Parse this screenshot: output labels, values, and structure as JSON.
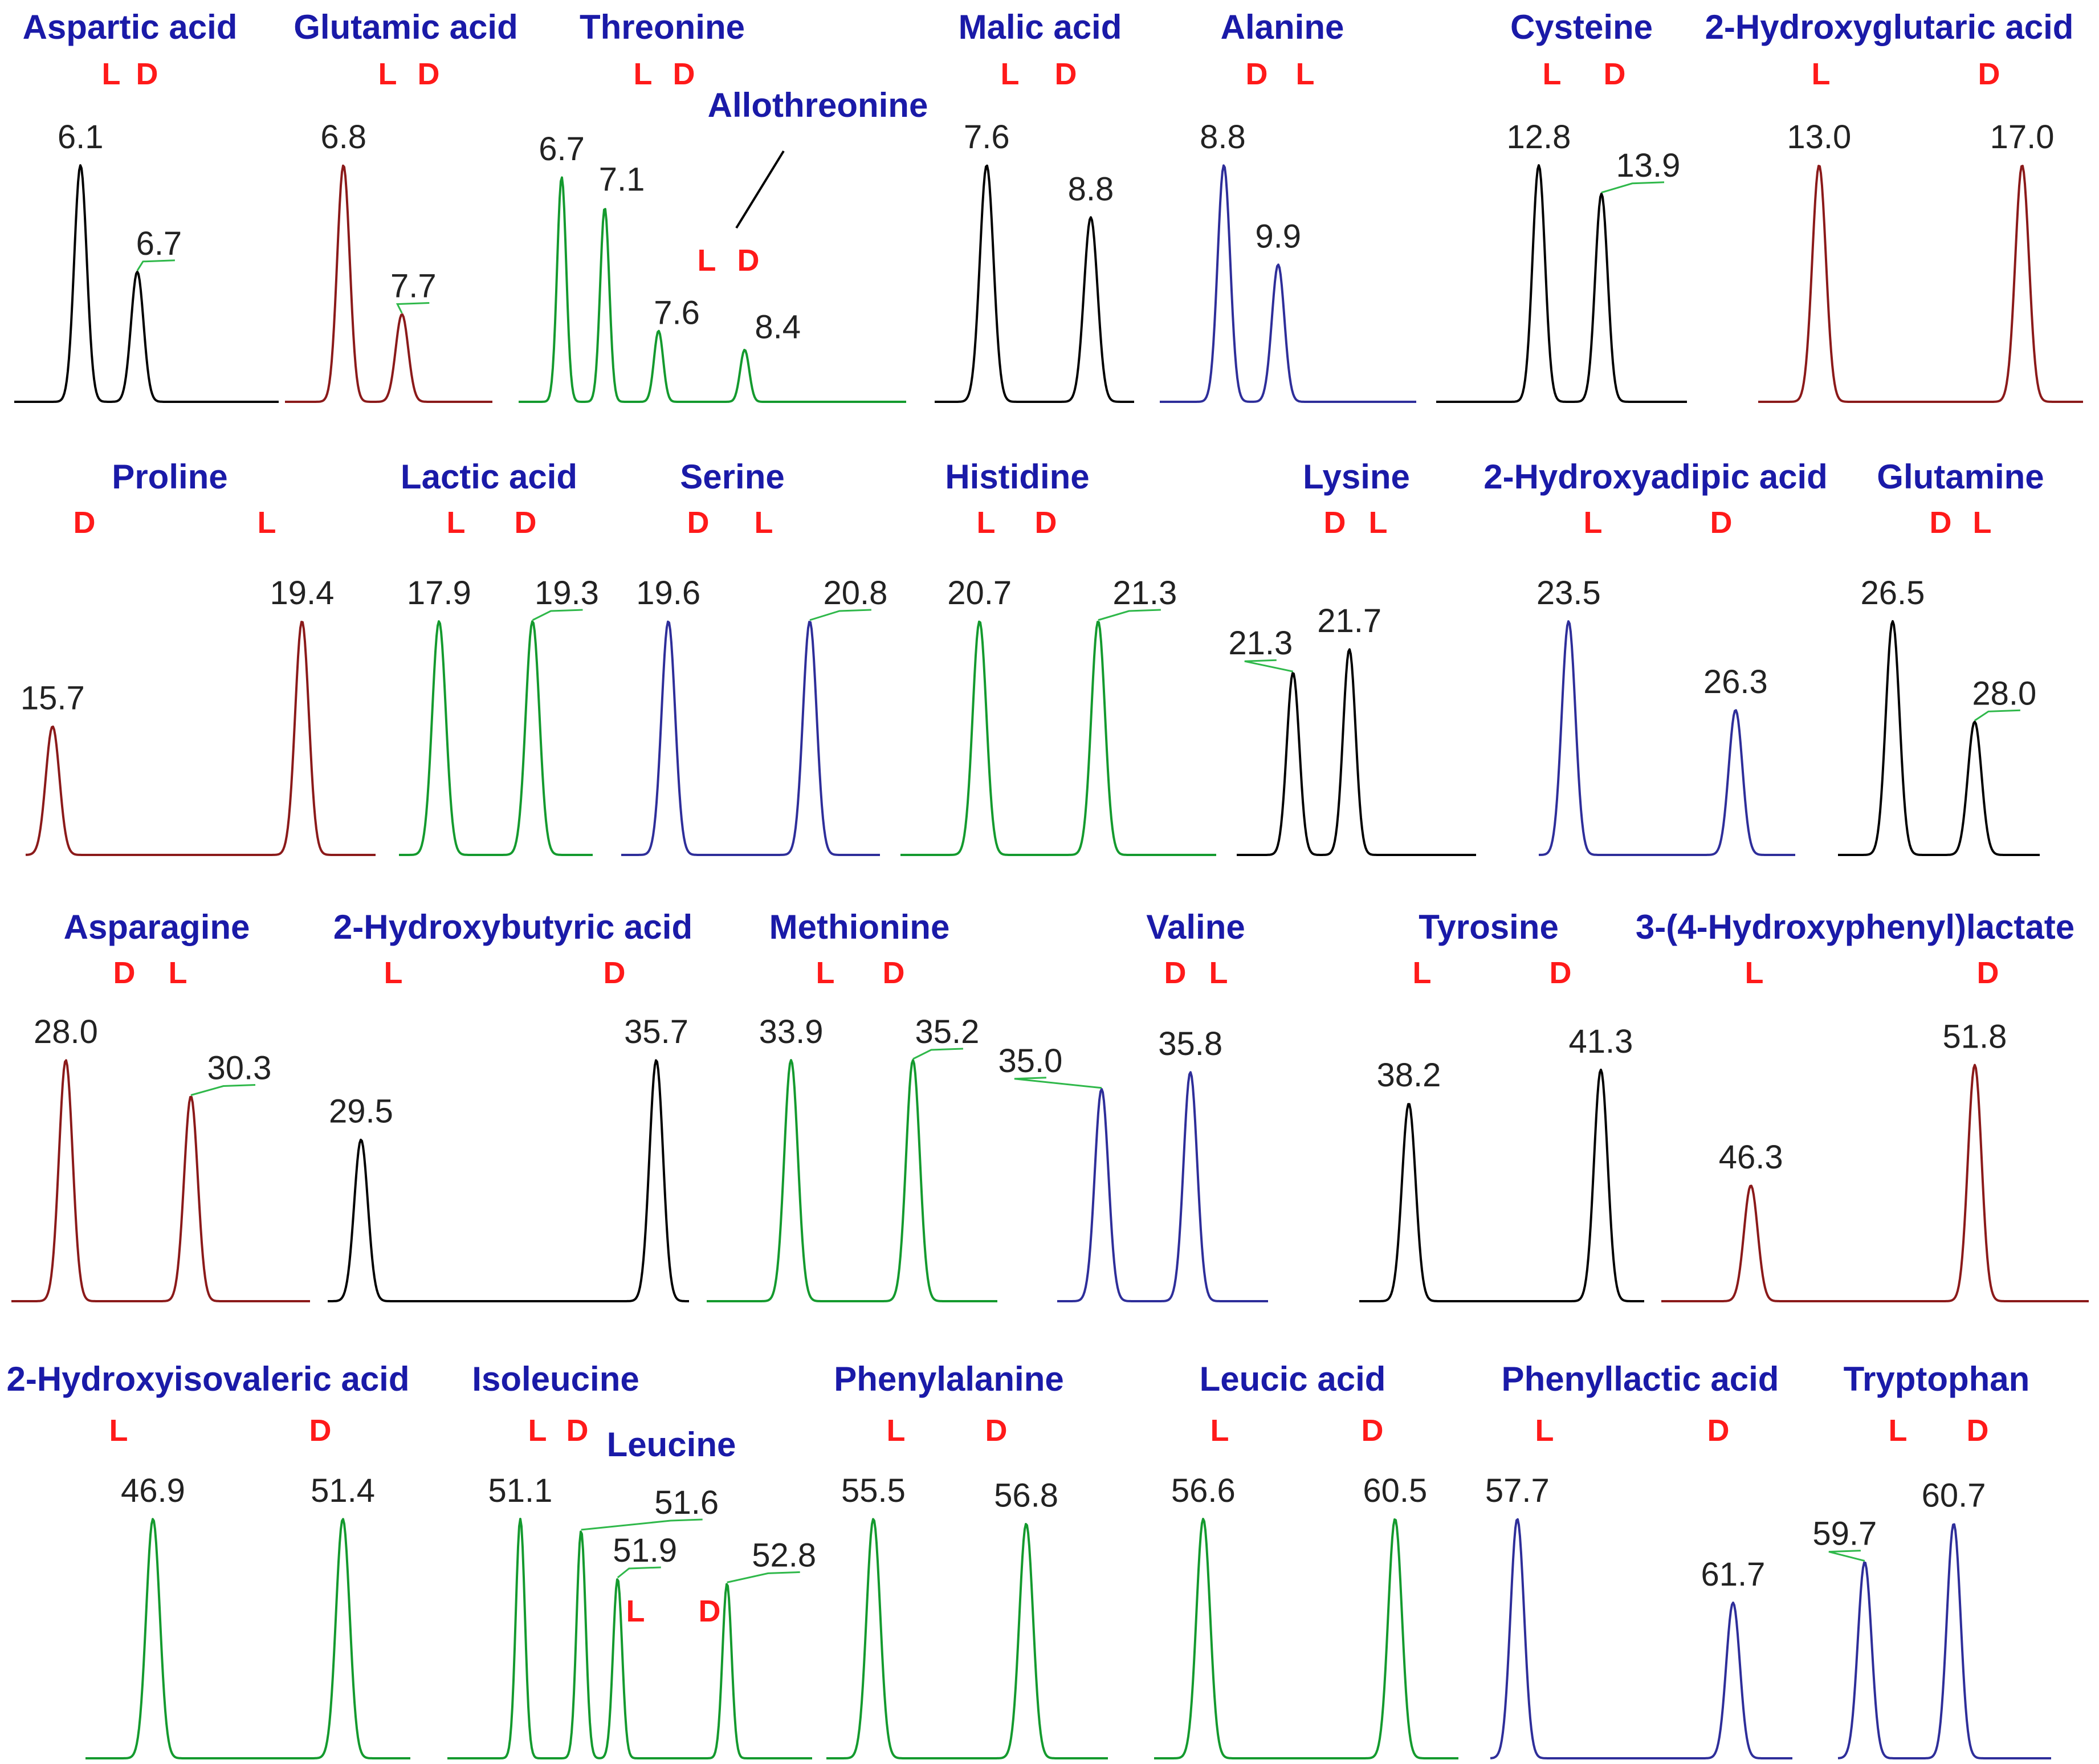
{
  "palette": {
    "black": "#000000",
    "red": "#8b1a1a",
    "green": "#149a2e",
    "blue": "#2e2e9a",
    "title": "#1a1aa8",
    "enant": "#ff1a1a"
  },
  "chart_data": [
    {
      "type": "line",
      "title": "Aspartic acid",
      "color": "black",
      "xlim": [
        5.4,
        8.2
      ],
      "peaks": [
        {
          "enantiomer": "L",
          "rt": 6.1,
          "height": 1.0
        },
        {
          "enantiomer": "D",
          "rt": 6.7,
          "height": 0.55
        }
      ]
    },
    {
      "type": "line",
      "title": "Glutamic acid",
      "color": "red",
      "xlim": [
        5.9,
        9.1
      ],
      "peaks": [
        {
          "enantiomer": "L",
          "rt": 6.8,
          "height": 1.0
        },
        {
          "enantiomer": "D",
          "rt": 7.7,
          "height": 0.37
        }
      ]
    },
    {
      "type": "line",
      "title": "Threonine",
      "color": "green",
      "xlim": [
        6.3,
        9.9
      ],
      "peaks": [
        {
          "enantiomer": "L",
          "rt": 6.7,
          "height": 0.95
        },
        {
          "enantiomer": "D",
          "rt": 7.1,
          "height": 0.82
        }
      ]
    },
    {
      "type": "line",
      "title": "Allothreonine",
      "color": "green",
      "peaks": [
        {
          "enantiomer": "L",
          "rt": 7.6,
          "height": 0.3
        },
        {
          "enantiomer": "D",
          "rt": 8.4,
          "height": 0.22
        }
      ]
    },
    {
      "type": "line",
      "title": "Malic acid",
      "color": "black",
      "xlim": [
        7.0,
        9.3
      ],
      "peaks": [
        {
          "enantiomer": "L",
          "rt": 7.6,
          "height": 1.0
        },
        {
          "enantiomer": "D",
          "rt": 8.8,
          "height": 0.78
        }
      ]
    },
    {
      "type": "line",
      "title": "Alanine",
      "color": "blue",
      "xlim": [
        7.5,
        12.7
      ],
      "peaks": [
        {
          "enantiomer": "D",
          "rt": 8.8,
          "height": 1.0
        },
        {
          "enantiomer": "L",
          "rt": 9.9,
          "height": 0.58
        }
      ]
    },
    {
      "type": "line",
      "title": "Cysteine",
      "color": "black",
      "xlim": [
        11.0,
        15.4
      ],
      "peaks": [
        {
          "enantiomer": "L",
          "rt": 12.8,
          "height": 1.0
        },
        {
          "enantiomer": "D",
          "rt": 13.9,
          "height": 0.88
        }
      ]
    },
    {
      "type": "line",
      "title": "2-Hydroxyglutaric acid",
      "color": "red",
      "xlim": [
        11.8,
        18.2
      ],
      "peaks": [
        {
          "enantiomer": "L",
          "rt": 13.0,
          "height": 1.0
        },
        {
          "enantiomer": "D",
          "rt": 17.0,
          "height": 1.0
        }
      ]
    },
    {
      "type": "line",
      "title": "Proline",
      "color": "red",
      "xlim": [
        15.3,
        20.5
      ],
      "peaks": [
        {
          "enantiomer": "D",
          "rt": 15.7,
          "height": 0.55
        },
        {
          "enantiomer": "L",
          "rt": 19.4,
          "height": 1.0
        }
      ]
    },
    {
      "type": "line",
      "title": "Lactic acid",
      "color": "green",
      "xlim": [
        17.3,
        20.2
      ],
      "peaks": [
        {
          "enantiomer": "L",
          "rt": 17.9,
          "height": 1.0
        },
        {
          "enantiomer": "D",
          "rt": 19.3,
          "height": 1.0
        }
      ]
    },
    {
      "type": "line",
      "title": "Serine",
      "color": "blue",
      "xlim": [
        19.2,
        21.4
      ],
      "peaks": [
        {
          "enantiomer": "D",
          "rt": 19.6,
          "height": 1.0
        },
        {
          "enantiomer": "L",
          "rt": 20.8,
          "height": 1.0
        }
      ]
    },
    {
      "type": "line",
      "title": "Histidine",
      "color": "green",
      "xlim": [
        20.3,
        21.9
      ],
      "peaks": [
        {
          "enantiomer": "L",
          "rt": 20.7,
          "height": 1.0
        },
        {
          "enantiomer": "D",
          "rt": 21.3,
          "height": 1.0
        }
      ]
    },
    {
      "type": "line",
      "title": "Lysine",
      "color": "black",
      "xlim": [
        20.9,
        22.6
      ],
      "peaks": [
        {
          "enantiomer": "D",
          "rt": 21.3,
          "height": 0.78
        },
        {
          "enantiomer": "L",
          "rt": 21.7,
          "height": 0.88
        }
      ]
    },
    {
      "type": "line",
      "title": "2-Hydroxyadipic acid",
      "color": "blue",
      "xlim": [
        23.0,
        27.3
      ],
      "peaks": [
        {
          "enantiomer": "L",
          "rt": 23.5,
          "height": 1.0
        },
        {
          "enantiomer": "D",
          "rt": 26.3,
          "height": 0.62
        }
      ]
    },
    {
      "type": "line",
      "title": "Glutamine",
      "color": "black",
      "xlim": [
        25.5,
        29.2
      ],
      "peaks": [
        {
          "enantiomer": "D",
          "rt": 26.5,
          "height": 1.0
        },
        {
          "enantiomer": "L",
          "rt": 28.0,
          "height": 0.57
        }
      ]
    },
    {
      "type": "line",
      "title": "Asparagine",
      "color": "red",
      "xlim": [
        27.0,
        32.5
      ],
      "peaks": [
        {
          "enantiomer": "D",
          "rt": 28.0,
          "height": 1.0
        },
        {
          "enantiomer": "L",
          "rt": 30.3,
          "height": 0.85
        }
      ]
    },
    {
      "type": "line",
      "title": "2-Hydroxybutyric acid",
      "color": "black",
      "xlim": [
        28.8,
        36.4
      ],
      "peaks": [
        {
          "enantiomer": "L",
          "rt": 29.5,
          "height": 0.67
        },
        {
          "enantiomer": "D",
          "rt": 35.7,
          "height": 1.0
        }
      ]
    },
    {
      "type": "line",
      "title": "Methionine",
      "color": "green",
      "xlim": [
        33.0,
        36.1
      ],
      "peaks": [
        {
          "enantiomer": "L",
          "rt": 33.9,
          "height": 1.0
        },
        {
          "enantiomer": "D",
          "rt": 35.2,
          "height": 1.0
        }
      ]
    },
    {
      "type": "line",
      "title": "Valine",
      "color": "blue",
      "xlim": [
        34.6,
        36.5
      ],
      "peaks": [
        {
          "enantiomer": "D",
          "rt": 35.0,
          "height": 0.88
        },
        {
          "enantiomer": "L",
          "rt": 35.8,
          "height": 0.95
        }
      ]
    },
    {
      "type": "line",
      "title": "Tyrosine",
      "color": "black",
      "xlim": [
        37.4,
        42.0
      ],
      "peaks": [
        {
          "enantiomer": "L",
          "rt": 38.2,
          "height": 0.82
        },
        {
          "enantiomer": "D",
          "rt": 41.3,
          "height": 0.96
        }
      ]
    },
    {
      "type": "line",
      "title": "3-(4-Hydroxyphenyl)lactate",
      "color": "red",
      "xlim": [
        44.1,
        54.6
      ],
      "peaks": [
        {
          "enantiomer": "L",
          "rt": 46.3,
          "height": 0.48
        },
        {
          "enantiomer": "D",
          "rt": 51.8,
          "height": 0.98
        }
      ]
    },
    {
      "type": "line",
      "title": "2-Hydroxyisovaleric acid",
      "color": "green",
      "xlim": [
        45.3,
        53.0
      ],
      "peaks": [
        {
          "enantiomer": "L",
          "rt": 46.9,
          "height": 1.0
        },
        {
          "enantiomer": "D",
          "rt": 51.4,
          "height": 1.0
        }
      ]
    },
    {
      "type": "line",
      "title": "Isoleucine",
      "color": "green",
      "xlim": [
        50.5,
        53.5
      ],
      "peaks": [
        {
          "enantiomer": "L",
          "rt": 51.1,
          "height": 1.0
        },
        {
          "enantiomer": "D",
          "rt": 51.6,
          "height": 0.95
        }
      ]
    },
    {
      "type": "line",
      "title": "Leucine",
      "color": "green",
      "peaks": [
        {
          "enantiomer": "L",
          "rt": 51.9,
          "height": 0.75
        },
        {
          "enantiomer": "D",
          "rt": 52.8,
          "height": 0.73
        }
      ]
    },
    {
      "type": "line",
      "title": "Phenylalanine",
      "color": "green",
      "xlim": [
        55.1,
        57.5
      ],
      "peaks": [
        {
          "enantiomer": "L",
          "rt": 55.5,
          "height": 1.0
        },
        {
          "enantiomer": "D",
          "rt": 56.8,
          "height": 0.98
        }
      ]
    },
    {
      "type": "line",
      "title": "Leucic acid",
      "color": "green",
      "xlim": [
        55.6,
        61.8
      ],
      "peaks": [
        {
          "enantiomer": "L",
          "rt": 56.6,
          "height": 1.0
        },
        {
          "enantiomer": "D",
          "rt": 60.5,
          "height": 1.0
        }
      ]
    },
    {
      "type": "line",
      "title": "Phenyllactic acid",
      "color": "blue",
      "xlim": [
        57.2,
        62.8
      ],
      "peaks": [
        {
          "enantiomer": "L",
          "rt": 57.7,
          "height": 1.0
        },
        {
          "enantiomer": "D",
          "rt": 61.7,
          "height": 0.65
        }
      ]
    },
    {
      "type": "line",
      "title": "Tryptophan",
      "color": "blue",
      "xlim": [
        59.4,
        61.8
      ],
      "peaks": [
        {
          "enantiomer": "L",
          "rt": 59.7,
          "height": 0.82
        },
        {
          "enantiomer": "D",
          "rt": 60.7,
          "height": 0.98
        }
      ]
    }
  ]
}
